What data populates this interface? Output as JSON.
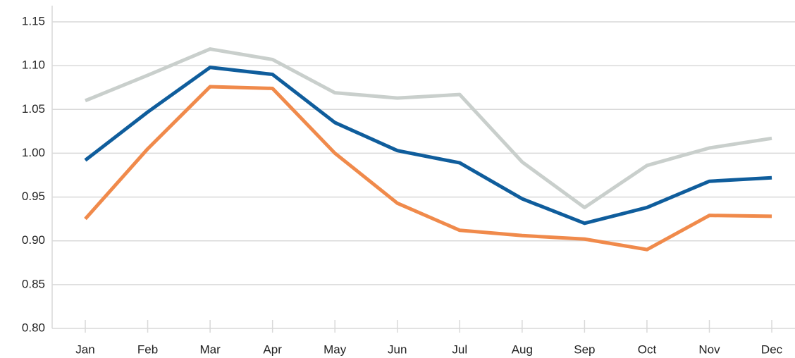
{
  "chart_data": {
    "type": "line",
    "categories": [
      "Jan",
      "Feb",
      "Mar",
      "Apr",
      "May",
      "Jun",
      "Jul",
      "Aug",
      "Sep",
      "Oct",
      "Nov",
      "Dec"
    ],
    "series": [
      {
        "color": "#c9cfcc",
        "values": [
          1.06,
          1.089,
          1.119,
          1.107,
          1.069,
          1.063,
          1.067,
          0.99,
          0.938,
          0.986,
          1.006,
          1.017
        ]
      },
      {
        "color": "#0f5d9c",
        "values": [
          0.992,
          1.047,
          1.098,
          1.09,
          1.035,
          1.003,
          0.989,
          0.948,
          0.92,
          0.938,
          0.968,
          0.972
        ]
      },
      {
        "color": "#f08a4b",
        "values": [
          0.925,
          1.005,
          1.076,
          1.074,
          1.0,
          0.943,
          0.912,
          0.906,
          0.902,
          0.89,
          0.929,
          0.928
        ]
      }
    ],
    "ylim": [
      0.8,
      1.15
    ],
    "yticks": [
      {
        "value": 0.8,
        "label": "0.80"
      },
      0.85,
      {
        "value": 0.9,
        "label": "0.90"
      },
      0.95,
      {
        "value": 1.0,
        "label": "1.00"
      },
      1.05,
      {
        "value": 1.1,
        "label": "1.10"
      },
      1.15
    ],
    "grid": true
  }
}
